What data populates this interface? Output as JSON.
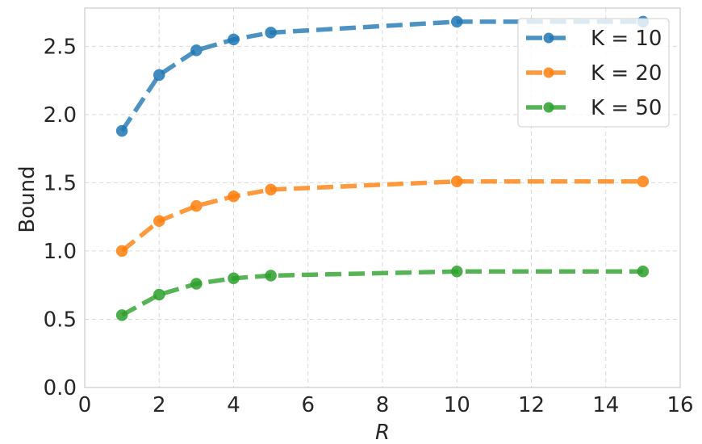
{
  "chart_data": {
    "type": "line",
    "title": "",
    "xlabel": "R",
    "ylabel": "Bound",
    "xlim": [
      0,
      16
    ],
    "ylim": [
      0,
      2.78
    ],
    "xticks": [
      0,
      2,
      4,
      6,
      8,
      10,
      12,
      14,
      16
    ],
    "yticks": [
      "0.0",
      "0.5",
      "1.0",
      "1.5",
      "2.0",
      "2.5"
    ],
    "grid": true,
    "legend_position": "top-right",
    "x": [
      1,
      2,
      3,
      4,
      5,
      10,
      15
    ],
    "series": [
      {
        "name": "K = 10",
        "color": "#1f77b4",
        "values": [
          1.88,
          2.29,
          2.47,
          2.55,
          2.6,
          2.68,
          2.68
        ]
      },
      {
        "name": "K = 20",
        "color": "#ff7f0e",
        "values": [
          1.0,
          1.22,
          1.33,
          1.4,
          1.45,
          1.51,
          1.51
        ]
      },
      {
        "name": "K = 50",
        "color": "#2ca02c",
        "values": [
          0.53,
          0.68,
          0.76,
          0.8,
          0.82,
          0.85,
          0.85
        ]
      }
    ]
  }
}
